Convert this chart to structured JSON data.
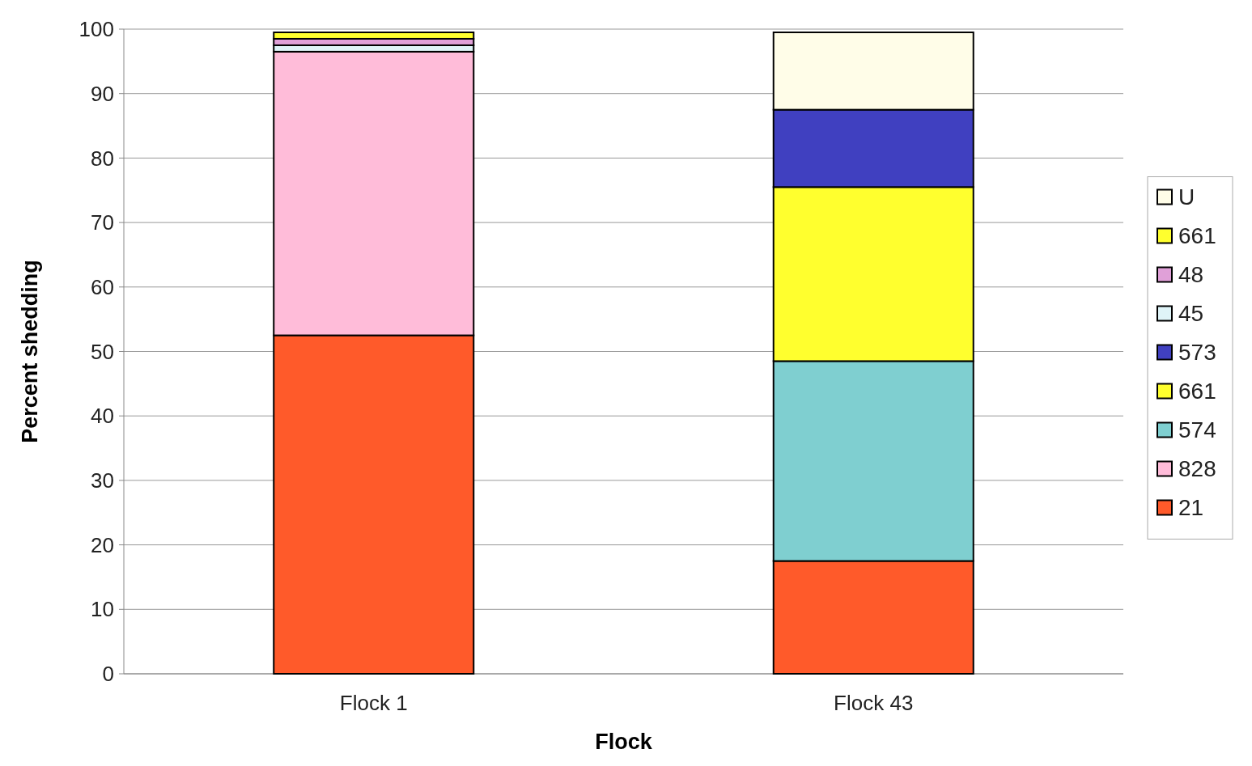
{
  "chart_data": {
    "type": "bar",
    "stacked": true,
    "xlabel": "Flock",
    "ylabel": "Percent shedding",
    "categories": [
      "Flock 1",
      "Flock 43"
    ],
    "series": [
      {
        "name": "21",
        "color": "#ff5a2a",
        "values": [
          52.5,
          17.5
        ]
      },
      {
        "name": "828",
        "color": "#ffbcd9",
        "values": [
          44,
          null
        ]
      },
      {
        "name": "574",
        "color": "#7fcfd0",
        "values": [
          null,
          31
        ]
      },
      {
        "name": "661",
        "color": "#ffff2e",
        "values": [
          null,
          27
        ]
      },
      {
        "name": "573",
        "color": "#4040c0",
        "values": [
          null,
          12
        ]
      },
      {
        "name": "45",
        "color": "#dff4f8",
        "values": [
          1,
          null
        ]
      },
      {
        "name": "48",
        "color": "#e0a0d8",
        "values": [
          1,
          null
        ]
      },
      {
        "name": "661",
        "color": "#ffff2e",
        "values": [
          1,
          null
        ]
      },
      {
        "name": "U",
        "color": "#fffde8",
        "values": [
          null,
          12
        ]
      }
    ],
    "ylim": [
      0,
      100
    ],
    "yticks": [
      0,
      10,
      20,
      30,
      40,
      50,
      60,
      70,
      80,
      90,
      100
    ],
    "grid": "y",
    "legend": "right"
  }
}
